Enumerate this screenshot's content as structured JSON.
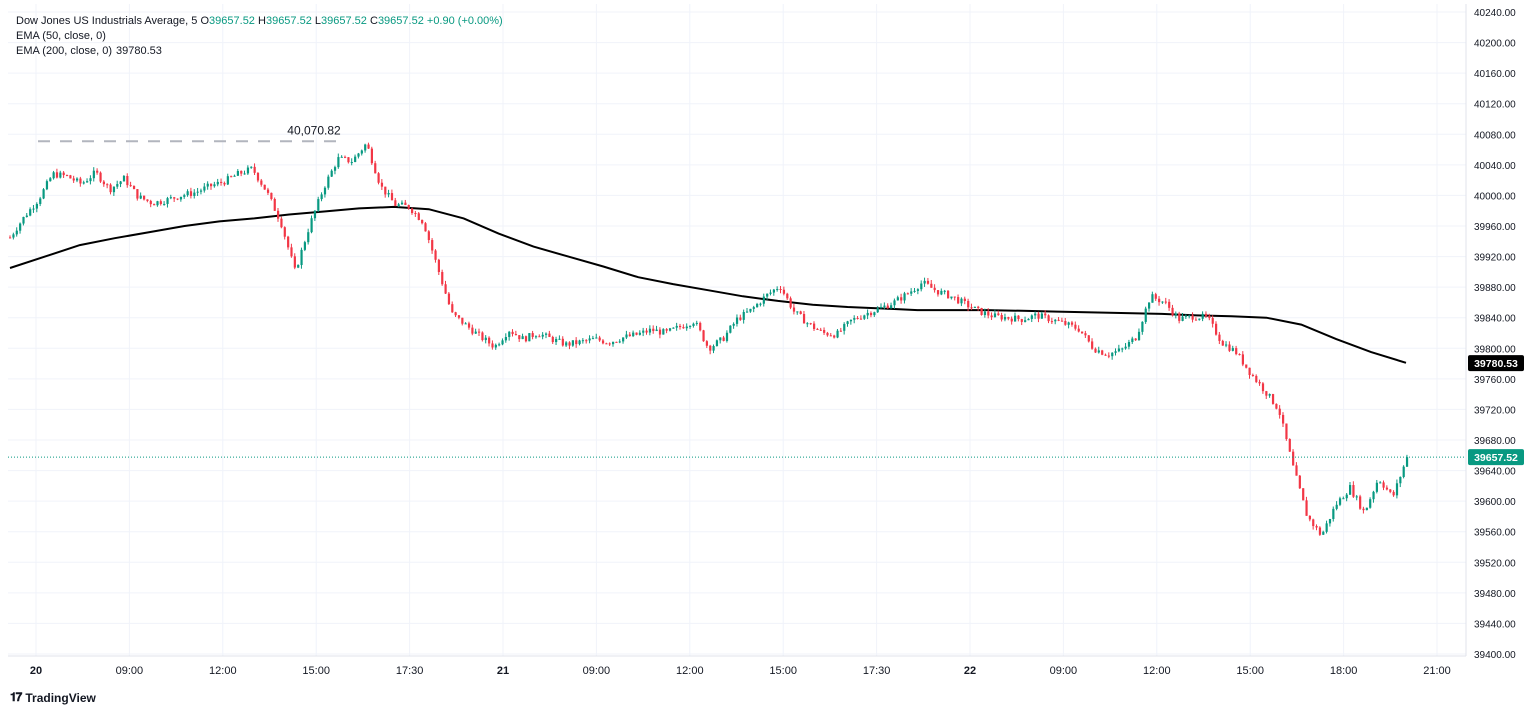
{
  "instrument": {
    "name": "Dow Jones US Industrials Average",
    "interval": "5",
    "open_label": "O",
    "open": "39657.52",
    "high_label": "H",
    "high": "39657.52",
    "low_label": "L",
    "low": "39657.52",
    "close_label": "C",
    "close": "39657.52",
    "change": "+0.90 (+0.00%)"
  },
  "indicators": [
    {
      "label": "EMA (50, close, 0)",
      "value": ""
    },
    {
      "label": "EMA (200, close, 0)",
      "value": "39780.53"
    }
  ],
  "branding": {
    "logo_text": "TradingView"
  },
  "colors": {
    "up": "#089981",
    "down": "#f23645",
    "ema200": "#000000",
    "price_line": "#089981",
    "grid": "#f0f3fa",
    "high_marker": "#b2b5be"
  },
  "chart_data": {
    "type": "candlestick",
    "ylim": [
      39400,
      40240
    ],
    "yticks": [
      "40240.00",
      "40200.00",
      "40160.00",
      "40120.00",
      "40080.00",
      "40040.00",
      "40000.00",
      "39960.00",
      "39920.00",
      "39880.00",
      "39840.00",
      "39800.00",
      "39760.00",
      "39720.00",
      "39680.00",
      "39640.00",
      "39600.00",
      "39560.00",
      "39520.00",
      "39480.00",
      "39440.00",
      "39400.00"
    ],
    "xticks": [
      "20",
      "09:00",
      "12:00",
      "15:00",
      "17:30",
      "21",
      "09:00",
      "12:00",
      "15:00",
      "17:30",
      "22",
      "09:00",
      "12:00",
      "15:00",
      "18:00",
      "21:00"
    ],
    "xtick_bold": [
      true,
      false,
      false,
      false,
      false,
      true,
      false,
      false,
      false,
      false,
      true,
      false,
      false,
      false,
      false,
      false
    ],
    "last_price": "39657.52",
    "ema200_last": "39780.53",
    "high_annotation": "40,070.82",
    "high_value": 40070.82,
    "price_path": [
      39945,
      39972,
      39995,
      40028,
      40025,
      40015,
      40030,
      40008,
      40022,
      39998,
      39990,
      39994,
      40000,
      40004,
      40012,
      40018,
      40028,
      40035,
      40005,
      39965,
      39900,
      39960,
      40010,
      40048,
      40045,
      40068,
      40012,
      39988,
      39985,
      39965,
      39905,
      39845,
      39830,
      39815,
      39802,
      39824,
      39812,
      39820,
      39812,
      39805,
      39808,
      39812,
      39808,
      39814,
      39818,
      39824,
      39820,
      39828,
      39836,
      39800,
      39812,
      39838,
      39850,
      39868,
      39882,
      39848,
      39832,
      39820,
      39818,
      39836,
      39845,
      39852,
      39860,
      39872,
      39886,
      39875,
      39868,
      39858,
      39848,
      39842,
      39840,
      39838,
      39843,
      39838,
      39832,
      39825,
      39800,
      39792,
      39798,
      39815,
      39868,
      39860,
      39838,
      39842,
      39840,
      39808,
      39795,
      39768,
      39745,
      39720,
      39645,
      39580,
      39555,
      39595,
      39618,
      39585,
      39630,
      39605,
      39657.52
    ],
    "ema200_path": [
      39905,
      39920,
      39935,
      39944,
      39952,
      39960,
      39966,
      39970,
      39975,
      39979,
      39983,
      39985,
      39982,
      39970,
      39950,
      39933,
      39920,
      39907,
      39893,
      39884,
      39876,
      39868,
      39862,
      39857,
      39854,
      39852,
      39850,
      39850,
      39850,
      39849,
      39848,
      39847,
      39846,
      39845,
      39843,
      39842,
      39840,
      39831,
      39812,
      39795,
      39781
    ]
  }
}
